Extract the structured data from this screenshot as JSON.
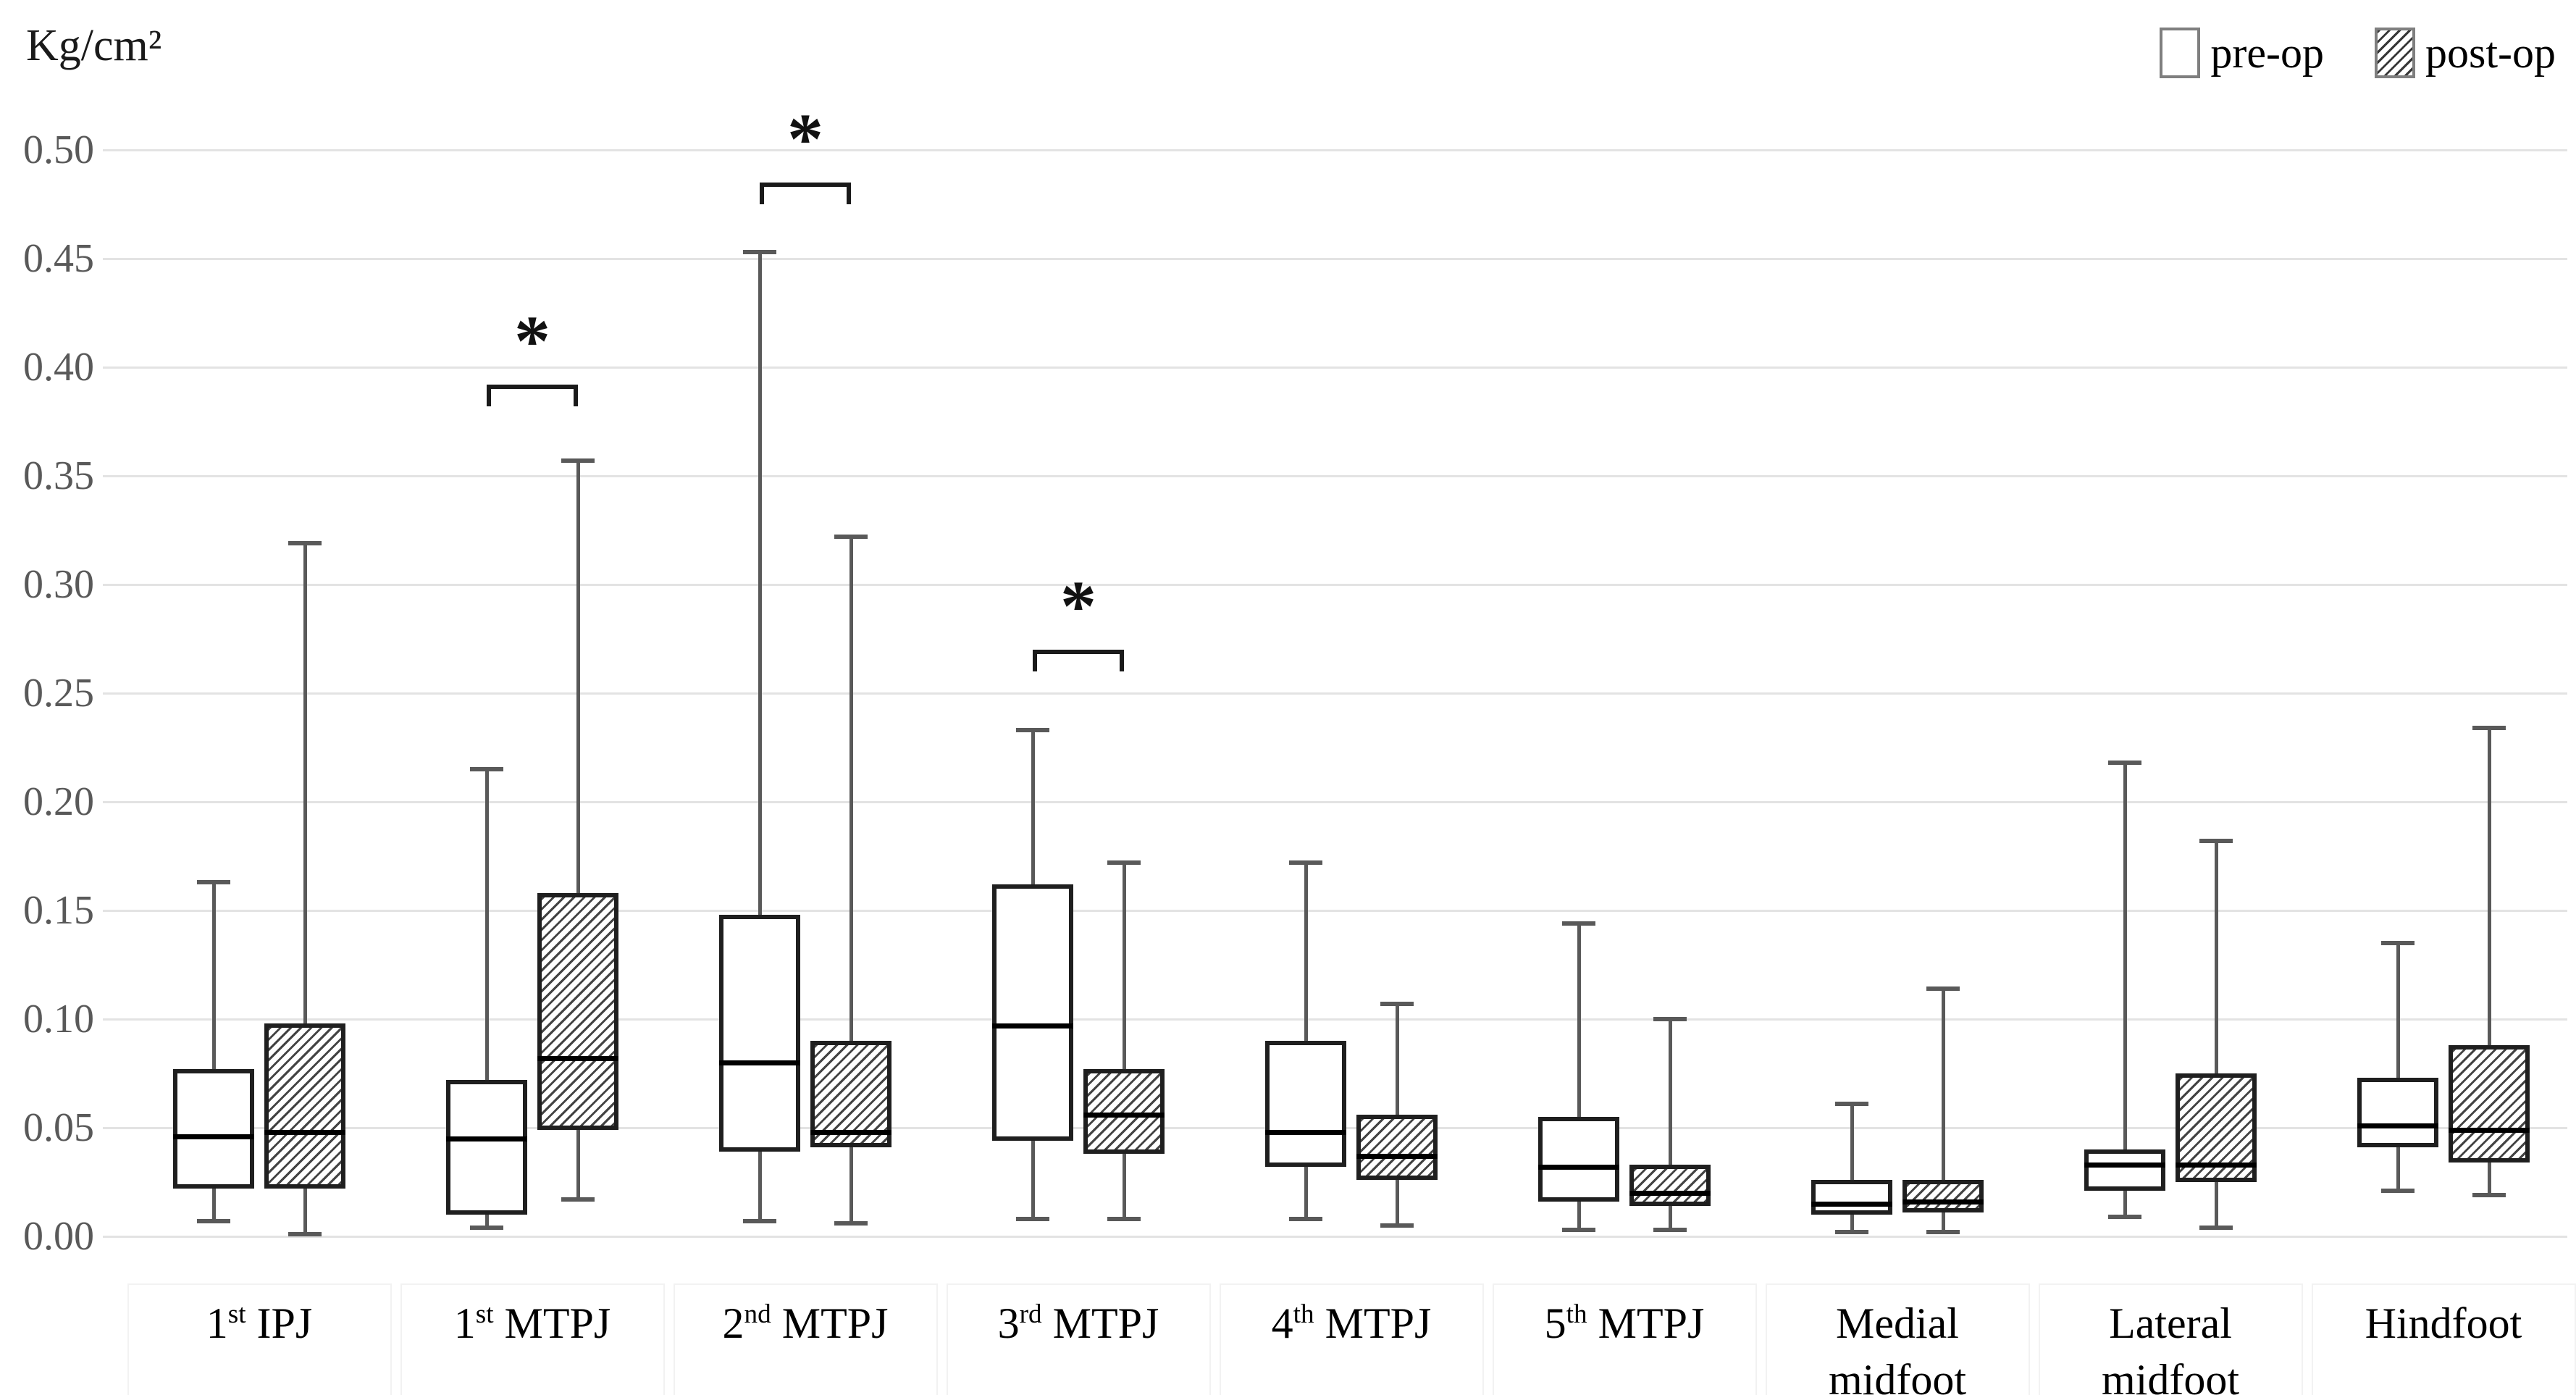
{
  "chart_data": {
    "type": "boxplot",
    "title": "",
    "ylabel": "Kg/cm²",
    "ylim": [
      0.0,
      0.5
    ],
    "ytick_step": 0.05,
    "yticks": [
      "0.00",
      "0.05",
      "0.10",
      "0.15",
      "0.20",
      "0.25",
      "0.30",
      "0.35",
      "0.40",
      "0.45",
      "0.50"
    ],
    "grid": "horizontal",
    "legend_position": "top-right",
    "legend": [
      {
        "label": "pre-op",
        "fill": "plain"
      },
      {
        "label": "post-op",
        "fill": "hatch"
      }
    ],
    "categories": [
      {
        "name": "1st IPJ",
        "line1_num": "1",
        "line1_sup": "st",
        "line1_rest": " IPJ",
        "line2": ""
      },
      {
        "name": "1st MTPJ",
        "line1_num": "1",
        "line1_sup": "st",
        "line1_rest": " MTPJ",
        "line2": ""
      },
      {
        "name": "2nd MTPJ",
        "line1_num": "2",
        "line1_sup": "nd",
        "line1_rest": " MTPJ",
        "line2": ""
      },
      {
        "name": "3rd MTPJ",
        "line1_num": "3",
        "line1_sup": "rd",
        "line1_rest": " MTPJ",
        "line2": ""
      },
      {
        "name": "4th MTPJ",
        "line1_num": "4",
        "line1_sup": "th",
        "line1_rest": " MTPJ",
        "line2": ""
      },
      {
        "name": "5th MTPJ",
        "line1_num": "5",
        "line1_sup": "th",
        "line1_rest": " MTPJ",
        "line2": ""
      },
      {
        "name": "Medial midfoot",
        "line1_num": "Medial",
        "line1_sup": "",
        "line1_rest": "",
        "line2": "midfoot"
      },
      {
        "name": "Lateral midfoot",
        "line1_num": "Lateral",
        "line1_sup": "",
        "line1_rest": "",
        "line2": "midfoot"
      },
      {
        "name": "Hindfoot",
        "line1_num": "Hindfoot",
        "line1_sup": "",
        "line1_rest": "",
        "line2": ""
      }
    ],
    "series": [
      {
        "name": "pre-op",
        "fill": "plain",
        "boxes": [
          {
            "min": 0.007,
            "q1": 0.022,
            "median": 0.046,
            "q3": 0.077,
            "max": 0.163
          },
          {
            "min": 0.004,
            "q1": 0.01,
            "median": 0.045,
            "q3": 0.072,
            "max": 0.215
          },
          {
            "min": 0.007,
            "q1": 0.039,
            "median": 0.08,
            "q3": 0.148,
            "max": 0.453
          },
          {
            "min": 0.008,
            "q1": 0.044,
            "median": 0.097,
            "q3": 0.162,
            "max": 0.233
          },
          {
            "min": 0.008,
            "q1": 0.032,
            "median": 0.048,
            "q3": 0.09,
            "max": 0.172
          },
          {
            "min": 0.003,
            "q1": 0.016,
            "median": 0.032,
            "q3": 0.055,
            "max": 0.144
          },
          {
            "min": 0.002,
            "q1": 0.01,
            "median": 0.015,
            "q3": 0.026,
            "max": 0.061
          },
          {
            "min": 0.009,
            "q1": 0.021,
            "median": 0.033,
            "q3": 0.04,
            "max": 0.218
          },
          {
            "min": 0.021,
            "q1": 0.041,
            "median": 0.051,
            "q3": 0.073,
            "max": 0.135
          }
        ]
      },
      {
        "name": "post-op",
        "fill": "hatch",
        "boxes": [
          {
            "min": 0.001,
            "q1": 0.022,
            "median": 0.048,
            "q3": 0.098,
            "max": 0.319
          },
          {
            "min": 0.017,
            "q1": 0.049,
            "median": 0.082,
            "q3": 0.158,
            "max": 0.357
          },
          {
            "min": 0.006,
            "q1": 0.041,
            "median": 0.048,
            "q3": 0.09,
            "max": 0.322
          },
          {
            "min": 0.008,
            "q1": 0.038,
            "median": 0.056,
            "q3": 0.077,
            "max": 0.172
          },
          {
            "min": 0.005,
            "q1": 0.026,
            "median": 0.037,
            "q3": 0.056,
            "max": 0.107
          },
          {
            "min": 0.003,
            "q1": 0.014,
            "median": 0.02,
            "q3": 0.033,
            "max": 0.1
          },
          {
            "min": 0.002,
            "q1": 0.011,
            "median": 0.016,
            "q3": 0.026,
            "max": 0.114
          },
          {
            "min": 0.004,
            "q1": 0.025,
            "median": 0.033,
            "q3": 0.075,
            "max": 0.182
          },
          {
            "min": 0.019,
            "q1": 0.034,
            "median": 0.049,
            "q3": 0.088,
            "max": 0.234
          }
        ]
      }
    ],
    "significance": [
      {
        "category_index": 1,
        "category": "1st MTPJ",
        "label": "*",
        "bracket_value": 0.392
      },
      {
        "category_index": 2,
        "category": "2nd MTPJ",
        "label": "*",
        "bracket_value": 0.485
      },
      {
        "category_index": 3,
        "category": "3rd MTPJ",
        "label": "*",
        "bracket_value": 0.27
      }
    ]
  }
}
